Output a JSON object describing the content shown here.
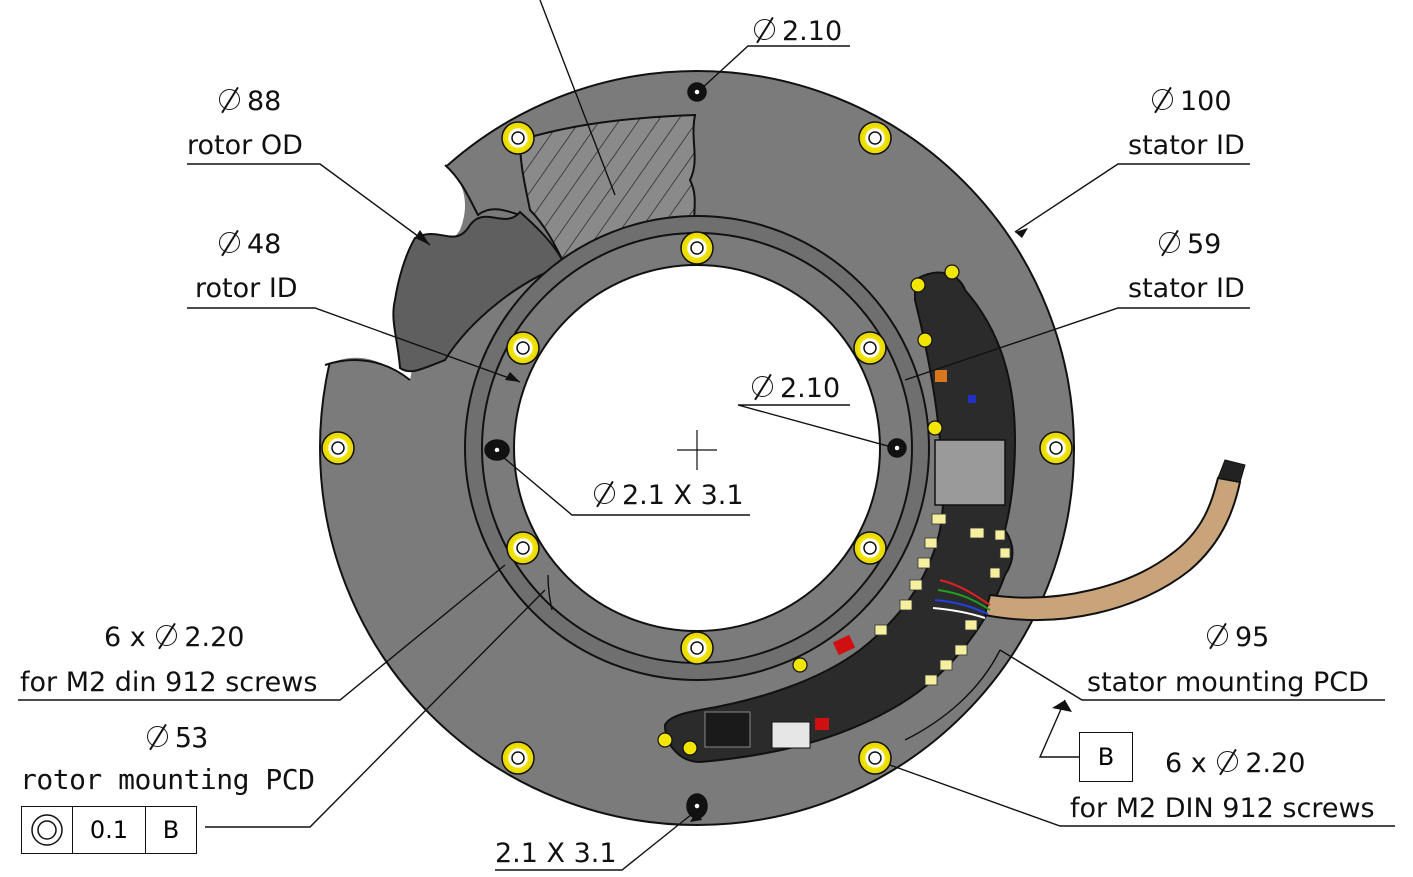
{
  "dimensions": {
    "top_hole": "2.10",
    "rotor_od_value": "88",
    "rotor_od_label": "rotor OD",
    "rotor_id_value": "48",
    "rotor_id_label": "rotor ID",
    "stator_od_value": "100",
    "stator_od_label": "stator ID",
    "stator_id_value": "59",
    "stator_id_label": "stator ID",
    "right_hole": "2.10",
    "slot": "2.1 X 3.1",
    "rotor_screws_line1": "6 x",
    "rotor_screws_value": "2.20",
    "rotor_screws_line2": "for M2 din 912 screws",
    "rotor_pcd_value": "53",
    "rotor_pcd_label": "rotor mounting PCD",
    "stator_pcd_value": "95",
    "stator_pcd_label": "stator mounting PCD",
    "stator_screws_line1": "6 x",
    "stator_screws_value": "2.20",
    "stator_screws_line2": "for M2 DIN 912 screws",
    "bottom_slot": "2.1 X 3.1"
  },
  "tolerance_frame": {
    "symbol": "concentricity-icon",
    "value": "0.1",
    "datum": "B"
  },
  "datum_label": "B",
  "colors": {
    "stator": "#7b7b7b",
    "rotor": "#6f6f6f",
    "screw_ring": "#f2e600",
    "pcb": "#2a2a2a",
    "cable": "#c9a47a",
    "line": "#111111"
  }
}
